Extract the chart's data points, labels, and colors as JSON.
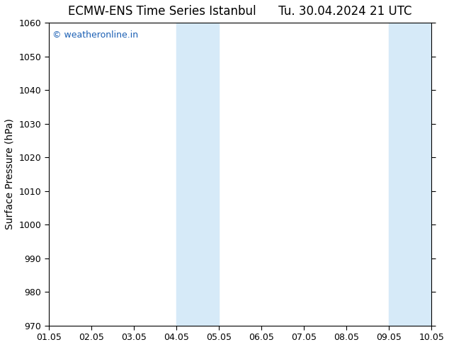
{
  "title_left": "ECMW-ENS Time Series Istanbul",
  "title_right": "Tu. 30.04.2024 21 UTC",
  "ylabel": "Surface Pressure (hPa)",
  "ylim": [
    970,
    1060
  ],
  "yticks": [
    970,
    980,
    990,
    1000,
    1010,
    1020,
    1030,
    1040,
    1050,
    1060
  ],
  "xlim_start": 0,
  "xlim_end": 9,
  "xtick_labels": [
    "01.05",
    "02.05",
    "03.05",
    "04.05",
    "05.05",
    "06.05",
    "07.05",
    "08.05",
    "09.05",
    "10.05"
  ],
  "xtick_positions": [
    0,
    1,
    2,
    3,
    4,
    5,
    6,
    7,
    8,
    9
  ],
  "shaded_bands": [
    {
      "x_start": 3.0,
      "x_end": 4.0,
      "color": "#d6eaf8"
    },
    {
      "x_start": 8.0,
      "x_end": 9.0,
      "color": "#d6eaf8"
    }
  ],
  "watermark_text": "© weatheronline.in",
  "watermark_color": "#1a5fb4",
  "background_color": "#ffffff",
  "plot_bg_color": "#ffffff",
  "title_fontsize": 12,
  "axis_label_fontsize": 10,
  "tick_fontsize": 9,
  "watermark_fontsize": 9
}
